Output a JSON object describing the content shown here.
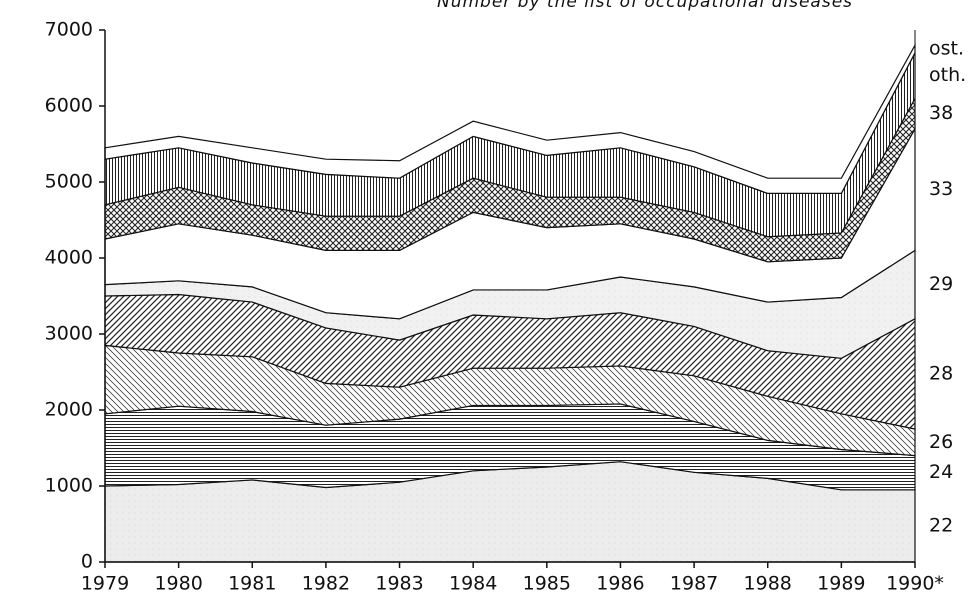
{
  "chart_data": {
    "type": "stacked_area",
    "title": "Number by the list of occupational diseases",
    "categories": [
      "1979",
      "1980",
      "1981",
      "1982",
      "1983",
      "1984",
      "1985",
      "1986",
      "1987",
      "1988",
      "1989",
      "1990*"
    ],
    "ylim": [
      0,
      7000
    ],
    "yticks": [
      0,
      1000,
      2000,
      3000,
      4000,
      5000,
      6000,
      7000
    ],
    "series": [
      {
        "name": "22",
        "color": "#ececec",
        "values": [
          1000,
          1020,
          1080,
          980,
          1050,
          1200,
          1250,
          1320,
          1180,
          1100,
          950,
          950
        ]
      },
      {
        "name": "24",
        "color": "#ffffff",
        "values": [
          950,
          1030,
          900,
          820,
          830,
          860,
          810,
          760,
          670,
          500,
          530,
          450
        ]
      },
      {
        "name": "26",
        "color": "#ffffff",
        "values": [
          900,
          700,
          720,
          550,
          420,
          490,
          490,
          500,
          600,
          580,
          470,
          350
        ]
      },
      {
        "name": "28",
        "color": "#ffffff",
        "values": [
          650,
          770,
          720,
          730,
          620,
          700,
          650,
          700,
          650,
          600,
          730,
          1450
        ]
      },
      {
        "name": "29",
        "color": "#f1f1f1",
        "values": [
          150,
          180,
          200,
          200,
          280,
          330,
          380,
          470,
          520,
          640,
          800,
          900
        ]
      },
      {
        "name": "33",
        "color": "#ffffff",
        "values": [
          600,
          750,
          680,
          820,
          900,
          1020,
          820,
          700,
          630,
          530,
          520,
          1600
        ]
      },
      {
        "name": "38",
        "color": "#ffffff",
        "values": [
          450,
          480,
          400,
          450,
          450,
          450,
          400,
          350,
          350,
          330,
          330,
          400
        ]
      },
      {
        "name": "oth.",
        "color": "#ffffff",
        "values": [
          600,
          520,
          550,
          550,
          500,
          550,
          550,
          650,
          600,
          570,
          520,
          600
        ]
      },
      {
        "name": "ost.",
        "color": "#ffffff",
        "values": [
          150,
          150,
          200,
          200,
          230,
          200,
          200,
          200,
          200,
          200,
          200,
          100
        ]
      }
    ]
  }
}
